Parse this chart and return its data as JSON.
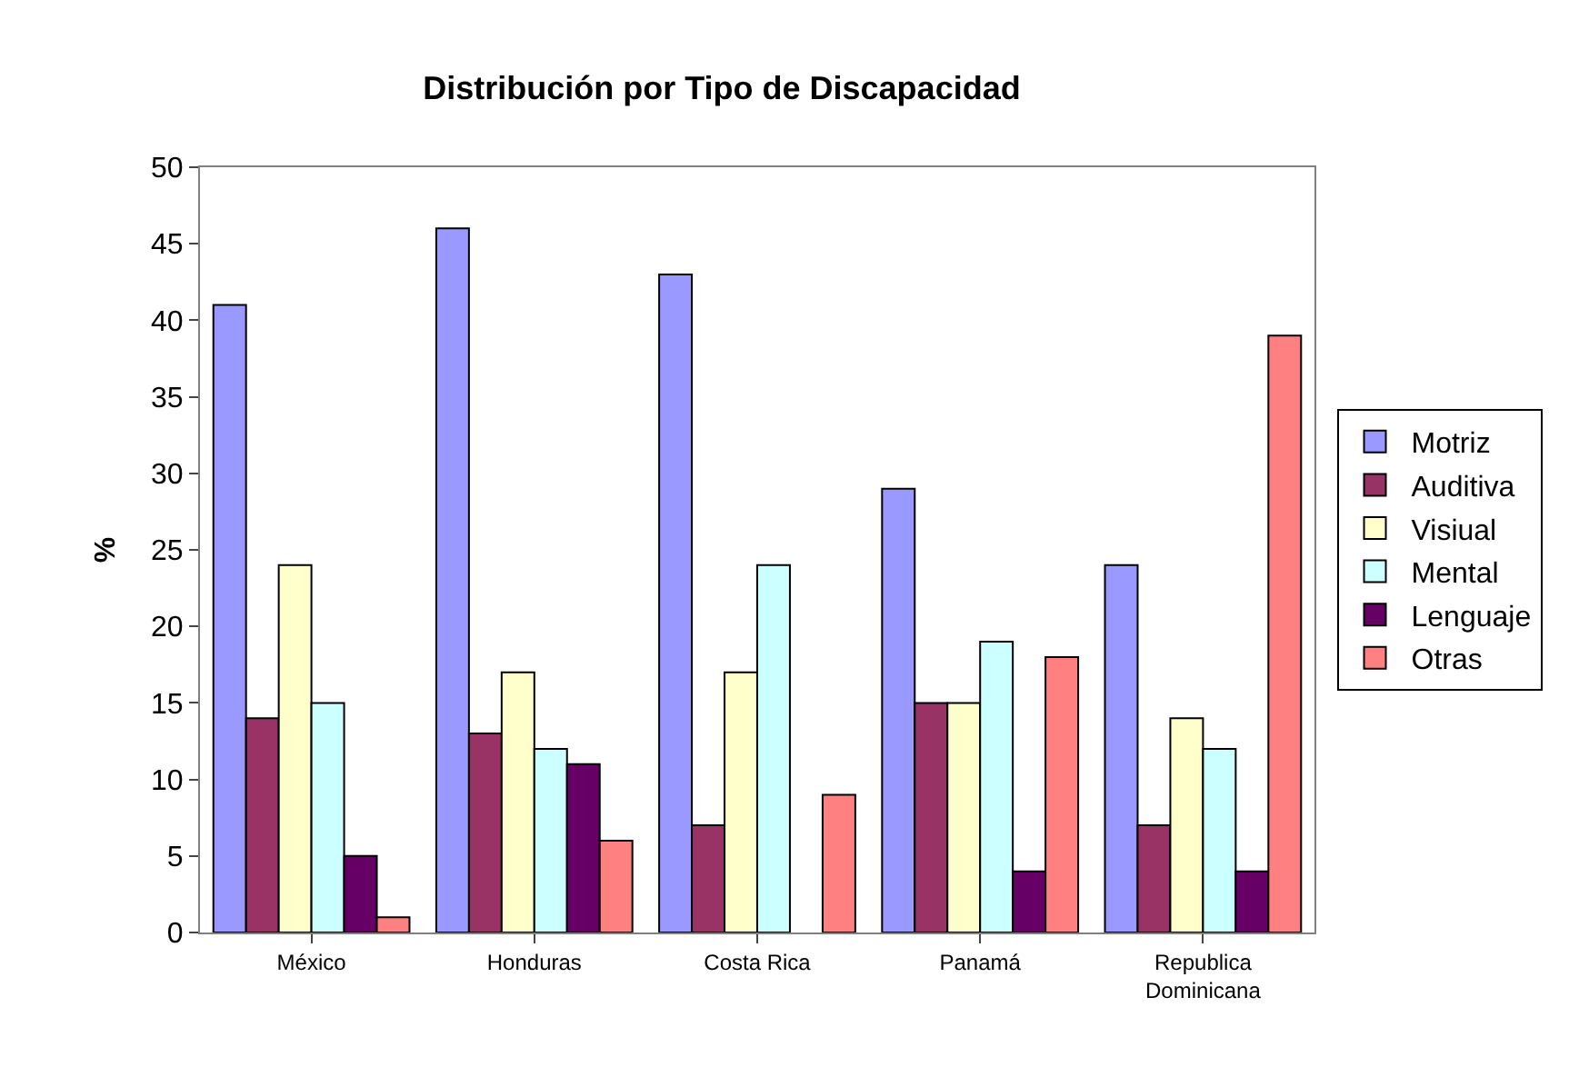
{
  "chart_data": {
    "type": "bar",
    "title": "Distribución por Tipo de Discapacidad",
    "ylabel": "%",
    "categories": [
      "México",
      "Honduras",
      "Costa Rica",
      "Panamá",
      "Republica Dominicana"
    ],
    "series": [
      {
        "name": "Motriz",
        "color": "#9999ff",
        "values": [
          41,
          46,
          43,
          29,
          24
        ]
      },
      {
        "name": "Auditiva",
        "color": "#993366",
        "values": [
          14,
          13,
          7,
          15,
          7
        ]
      },
      {
        "name": "Visiual",
        "color": "#ffffcc",
        "values": [
          24,
          17,
          17,
          15,
          14
        ]
      },
      {
        "name": "Mental",
        "color": "#ccffff",
        "values": [
          15,
          12,
          24,
          19,
          12
        ]
      },
      {
        "name": "Lenguaje",
        "color": "#660066",
        "values": [
          5,
          11,
          null,
          4,
          4
        ]
      },
      {
        "name": "Otras",
        "color": "#ff8080",
        "values": [
          1,
          6,
          9,
          18,
          39
        ]
      }
    ],
    "ylim": [
      0,
      50
    ],
    "yticks": [
      0,
      5,
      10,
      15,
      20,
      25,
      30,
      35,
      40,
      45,
      50
    ],
    "grid": false,
    "legend": "right"
  }
}
